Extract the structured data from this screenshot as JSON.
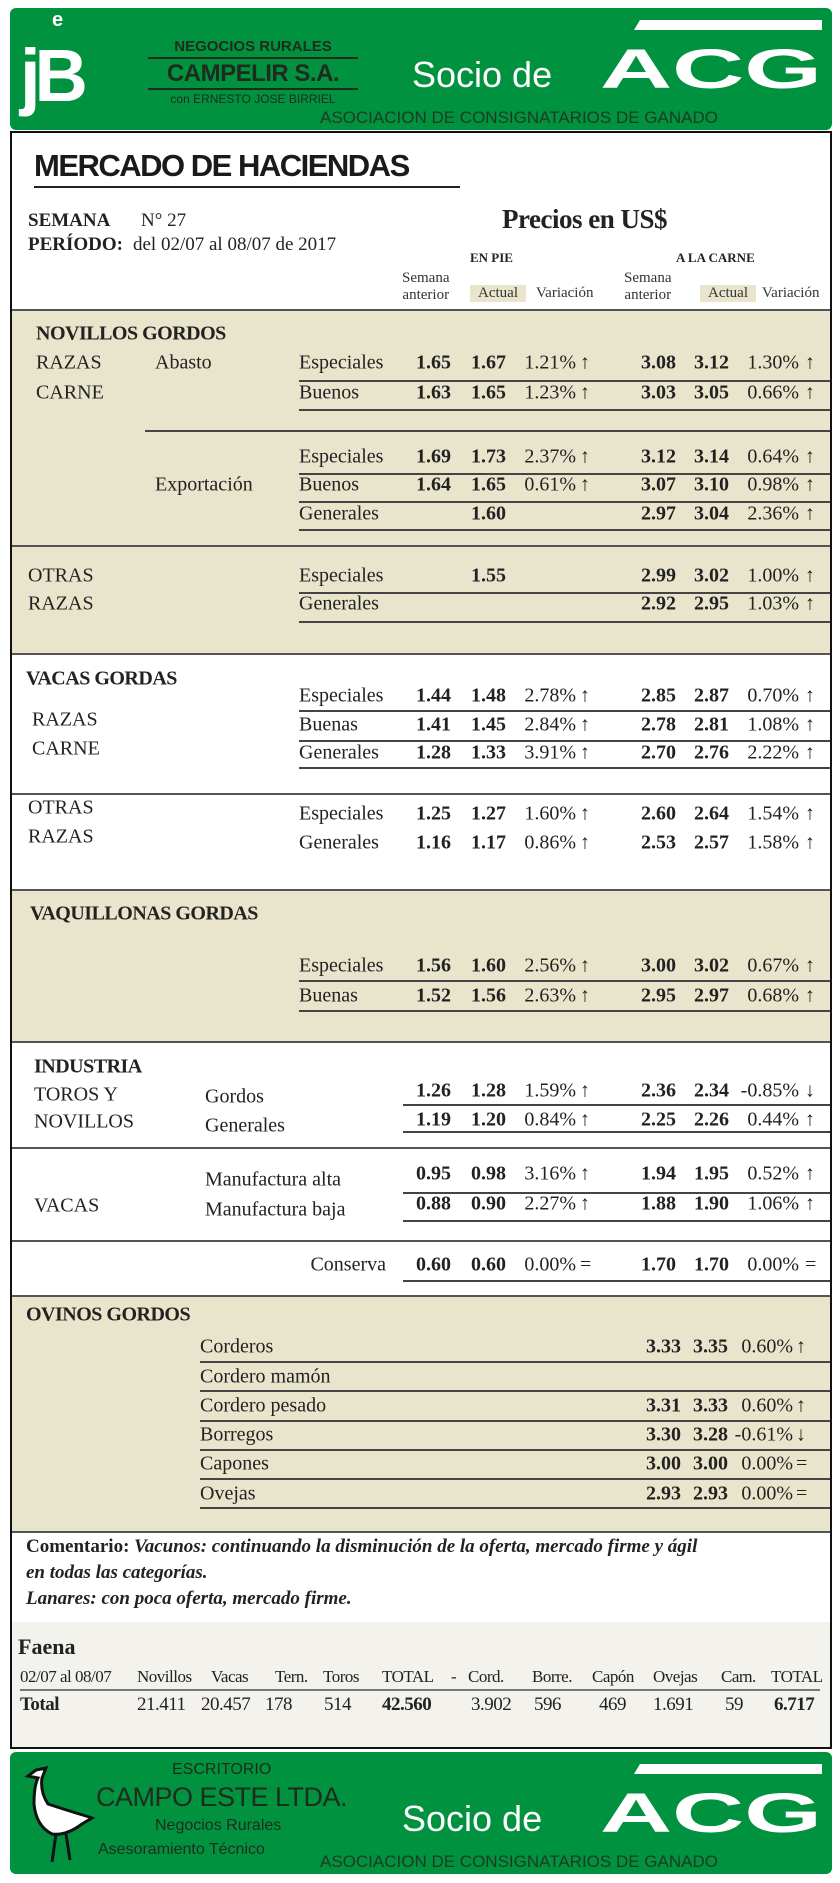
{
  "colors": {
    "brand_green": "#00923f",
    "section_tan": "#e8e5cc"
  },
  "header": {
    "logo_letters": "jB",
    "logo_e": "e",
    "company_top": "NEGOCIOS RURALES",
    "company_name": "CAMPELIR S.A.",
    "company_sub": "con ERNESTO JOSE BIRRIEL",
    "socio": "Socio de",
    "acg": "ACG",
    "acg_full": "ASOCIACION DE CONSIGNATARIOS DE GANADO"
  },
  "title": "MERCADO DE HACIENDAS",
  "semana_label": "SEMANA",
  "semana_value": "N° 27",
  "periodo_label": "PERÍODO:",
  "periodo_value": "del 02/07 al  08/07 de 2017",
  "precios": "Precios en US$",
  "groups": {
    "en_pie": "EN PIE",
    "a_la_carne": "A LA CARNE"
  },
  "cols": {
    "prev_1": "Semana",
    "prev_2": "anterior",
    "actual": "Actual",
    "variacion": "Variación"
  },
  "labels": {
    "novillos": "NOVILLOS GORDOS",
    "razas": "RAZAS",
    "carne": "CARNE",
    "abasto": "Abasto",
    "exportacion": "Exportación",
    "otras": "OTRAS",
    "vacas_gordas": "VACAS GORDAS",
    "vaquillonas": "VAQUILLONAS GORDAS",
    "industria": "INDUSTRIA",
    "toros_y": "TOROS Y",
    "novillos_ind": "NOVILLOS",
    "vacas": "VACAS",
    "ovinos": "OVINOS GORDOS"
  },
  "rows": [
    {
      "label": "Especiales",
      "pp": "1.65",
      "pa": "1.67",
      "pv": "1.21%",
      "pt": "up",
      "cp": "3.08",
      "ca": "3.12",
      "cv": "1.30%",
      "ct": "up"
    },
    {
      "label": "Buenos",
      "pp": "1.63",
      "pa": "1.65",
      "pv": "1.23%",
      "pt": "up",
      "cp": "3.03",
      "ca": "3.05",
      "cv": "0.66%",
      "ct": "up"
    },
    {
      "label": "Especiales",
      "pp": "1.69",
      "pa": "1.73",
      "pv": "2.37%",
      "pt": "up",
      "cp": "3.12",
      "ca": "3.14",
      "cv": "0.64%",
      "ct": "up"
    },
    {
      "label": "Buenos",
      "pp": "1.64",
      "pa": "1.65",
      "pv": "0.61%",
      "pt": "up",
      "cp": "3.07",
      "ca": "3.10",
      "cv": "0.98%",
      "ct": "up"
    },
    {
      "label": "Generales",
      "pp": "",
      "pa": "1.60",
      "pv": "",
      "pt": "",
      "cp": "2.97",
      "ca": "3.04",
      "cv": "2.36%",
      "ct": "up"
    },
    {
      "label": "Especiales",
      "pp": "",
      "pa": "1.55",
      "pv": "",
      "pt": "",
      "cp": "2.99",
      "ca": "3.02",
      "cv": "1.00%",
      "ct": "up"
    },
    {
      "label": "Generales",
      "pp": "",
      "pa": "",
      "pv": "",
      "pt": "",
      "cp": "2.92",
      "ca": "2.95",
      "cv": "1.03%",
      "ct": "up"
    },
    {
      "label": "Especiales",
      "pp": "1.44",
      "pa": "1.48",
      "pv": "2.78%",
      "pt": "up",
      "cp": "2.85",
      "ca": "2.87",
      "cv": "0.70%",
      "ct": "up"
    },
    {
      "label": "Buenas",
      "pp": "1.41",
      "pa": "1.45",
      "pv": "2.84%",
      "pt": "up",
      "cp": "2.78",
      "ca": "2.81",
      "cv": "1.08%",
      "ct": "up"
    },
    {
      "label": "Generales",
      "pp": "1.28",
      "pa": "1.33",
      "pv": "3.91%",
      "pt": "up",
      "cp": "2.70",
      "ca": "2.76",
      "cv": "2.22%",
      "ct": "up"
    },
    {
      "label": "Especiales",
      "pp": "1.25",
      "pa": "1.27",
      "pv": "1.60%",
      "pt": "up",
      "cp": "2.60",
      "ca": "2.64",
      "cv": "1.54%",
      "ct": "up"
    },
    {
      "label": "Generales",
      "pp": "1.16",
      "pa": "1.17",
      "pv": "0.86%",
      "pt": "up",
      "cp": "2.53",
      "ca": "2.57",
      "cv": "1.58%",
      "ct": "up"
    },
    {
      "label": "Especiales",
      "pp": "1.56",
      "pa": "1.60",
      "pv": "2.56%",
      "pt": "up",
      "cp": "3.00",
      "ca": "3.02",
      "cv": "0.67%",
      "ct": "up"
    },
    {
      "label": "Buenas",
      "pp": "1.52",
      "pa": "1.56",
      "pv": "2.63%",
      "pt": "up",
      "cp": "2.95",
      "ca": "2.97",
      "cv": "0.68%",
      "ct": "up"
    },
    {
      "label": "Gordos",
      "pp": "1.26",
      "pa": "1.28",
      "pv": "1.59%",
      "pt": "up",
      "cp": "2.36",
      "ca": "2.34",
      "cv": "-0.85%",
      "ct": "down"
    },
    {
      "label": "Generales",
      "pp": "1.19",
      "pa": "1.20",
      "pv": "0.84%",
      "pt": "up",
      "cp": "2.25",
      "ca": "2.26",
      "cv": "0.44%",
      "ct": "up"
    },
    {
      "label": "Manufactura alta",
      "pp": "0.95",
      "pa": "0.98",
      "pv": "3.16%",
      "pt": "up",
      "cp": "1.94",
      "ca": "1.95",
      "cv": "0.52%",
      "ct": "up"
    },
    {
      "label": "Manufactura baja",
      "pp": "0.88",
      "pa": "0.90",
      "pv": "2.27%",
      "pt": "up",
      "cp": "1.88",
      "ca": "1.90",
      "cv": "1.06%",
      "ct": "up"
    },
    {
      "label": "Conserva",
      "pp": "0.60",
      "pa": "0.60",
      "pv": "0.00%",
      "pt": "equal",
      "cp": "1.70",
      "ca": "1.70",
      "cv": "0.00%",
      "ct": "equal"
    },
    {
      "label": "Corderos",
      "pp": "",
      "pa": "",
      "pv": "",
      "pt": "",
      "cp": "3.33",
      "ca": "3.35",
      "cv": "0.60%",
      "ct": "up"
    },
    {
      "label": "Cordero mamón",
      "pp": "",
      "pa": "",
      "pv": "",
      "pt": "",
      "cp": "",
      "ca": "",
      "cv": "",
      "ct": ""
    },
    {
      "label": "Cordero pesado",
      "pp": "",
      "pa": "",
      "pv": "",
      "pt": "",
      "cp": "3.31",
      "ca": "3.33",
      "cv": "0.60%",
      "ct": "up"
    },
    {
      "label": "Borregos",
      "pp": "",
      "pa": "",
      "pv": "",
      "pt": "",
      "cp": "3.30",
      "ca": "3.28",
      "cv": "-0.61%",
      "ct": "down"
    },
    {
      "label": "Capones",
      "pp": "",
      "pa": "",
      "pv": "",
      "pt": "",
      "cp": "3.00",
      "ca": "3.00",
      "cv": "0.00%",
      "ct": "equal"
    },
    {
      "label": "Ovejas",
      "pp": "",
      "pa": "",
      "pv": "",
      "pt": "",
      "cp": "2.93",
      "ca": "2.93",
      "cv": "0.00%",
      "ct": "equal"
    }
  ],
  "comentario": {
    "label": "Comentario:",
    "vacunos_label": "Vacunos:",
    "vacunos_text_1": " continuando la disminución de la oferta, mercado firme y ágil",
    "vacunos_text_2": "en todas las categorías.",
    "lanares_label": "Lanares:",
    "lanares_text": " con poca oferta, mercado firme."
  },
  "faena": {
    "title": "Faena",
    "headers": [
      "02/07 al 08/07",
      "Novillos",
      "Vacas",
      "Tern.",
      "Toros",
      "TOTAL",
      "-",
      "Cord.",
      "Borre.",
      "Capón",
      "Ovejas",
      "Carn.",
      "TOTAL"
    ],
    "total_row": [
      "Total",
      "21.411",
      "20.457",
      "178",
      "514",
      "42.560",
      "",
      "3.902",
      "596",
      "469",
      "1.691",
      "59",
      "6.717"
    ]
  },
  "footer": {
    "escritorio": "ESCRITORIO",
    "name": "CAMPO ESTE LTDA.",
    "sub1": "Negocios Rurales",
    "sub2": "Asesoramiento Técnico",
    "socio": "Socio de",
    "acg": "ACG",
    "acg_full": "ASOCIACION DE CONSIGNATARIOS DE GANADO"
  }
}
